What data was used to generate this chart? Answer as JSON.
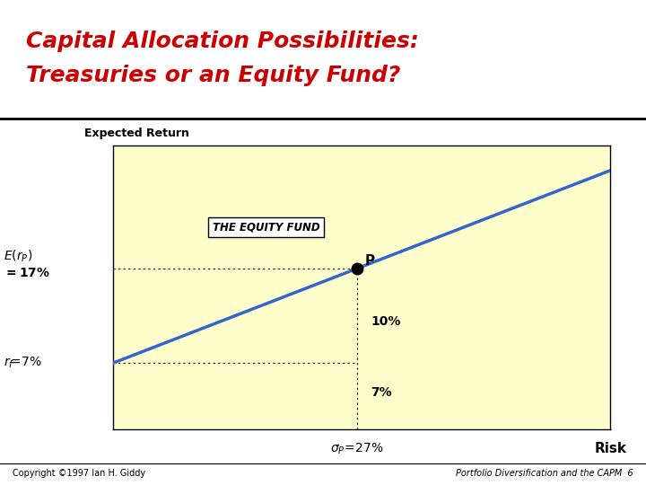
{
  "title_line1": "Capital Allocation Possibilities:",
  "title_line2": "Treasuries or an Equity Fund?",
  "title_color": "#CC0000",
  "bg_color_outer": "#FFFFFF",
  "bg_color_plot": "#FFFFCC",
  "ylabel": "Expected Return",
  "xlabel_right": "Risk",
  "rf": 7,
  "erp": 17,
  "sigma_p": 27,
  "point_label": "P",
  "line_color": "#3366CC",
  "line_width": 2.5,
  "x_line_end": 55,
  "annotation_equity_fund": "THE EQUITY FUND",
  "annotation_10pct": "10%",
  "annotation_7pct": "7%",
  "footer_left": "Copyright ©1997 Ian H. Giddy",
  "footer_right": "Portfolio Diversification and the CAPM  6",
  "xlim": [
    0,
    55
  ],
  "ylim": [
    0,
    30
  ],
  "title_fontsize": 18,
  "sep_line_y": 0.755
}
